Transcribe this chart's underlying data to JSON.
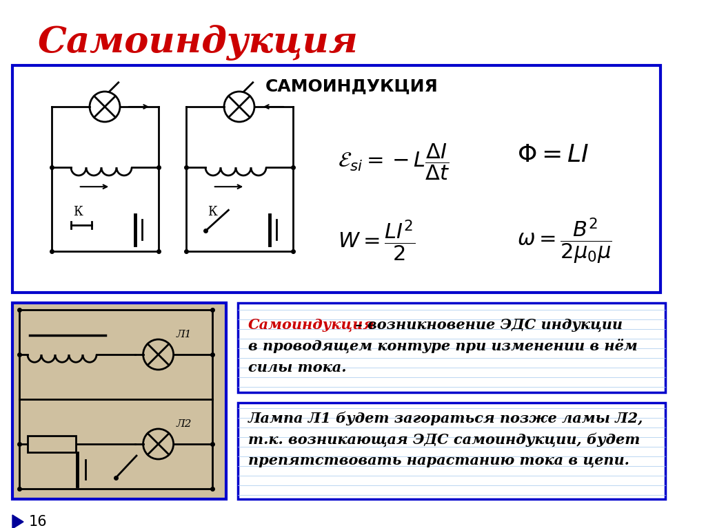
{
  "title": "Самоиндукция",
  "bg_color": "#ffffff",
  "title_color": "#cc0000",
  "box_border": "#0000cc",
  "top_box_label": "САМОИНДУКЦИЯ",
  "def_red": "Самоиндукция",
  "def_line1": " – возникновение ЭДС индукции",
  "def_line2": "в проводящем контуре при изменении в нём",
  "def_line3": "силы тока.",
  "lamp_line1": "Лампа Л1 будет загораться позже ламы Л2,",
  "lamp_line2": "т.к. возникающая ЭДС самоиндукции, будет",
  "lamp_line3": "препятствовать нарастанию тока в цепи.",
  "page_num": "16",
  "arrow_color": "#000099",
  "grid_color": "#aaccee",
  "box_fill_circuit": "#cfc0a0",
  "label_K": "К"
}
